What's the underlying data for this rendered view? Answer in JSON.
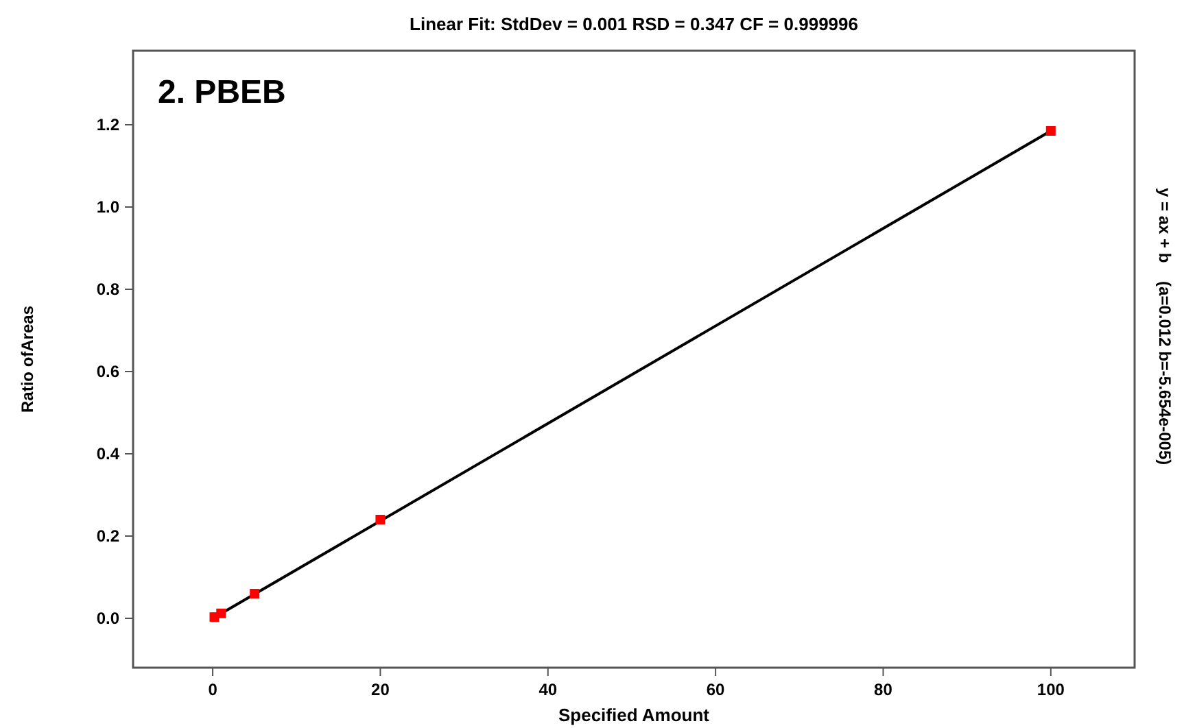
{
  "chart_data": {
    "type": "scatter",
    "title": "Linear Fit: StdDev = 0.001 RSD = 0.347 CF = 0.999996",
    "xlabel": "Specified Amount",
    "ylabel": "Ratio ofAreas",
    "annotations": [
      "2. PBEB",
      "y = ax + b    (a=0.012 b=-5.654e-005)"
    ],
    "series": [
      {
        "type": "line",
        "color": "#000000",
        "x": [
          0.2,
          100
        ],
        "values": [
          0.002,
          1.185
        ],
        "marker": "none"
      },
      {
        "color": "#ff0000",
        "x": [
          0.2,
          1,
          5,
          20,
          100
        ],
        "values": [
          0.003,
          0.012,
          0.06,
          0.24,
          1.185
        ],
        "marker": "square"
      }
    ],
    "xlim": [
      -9.5,
      110
    ],
    "xticks": [
      0,
      20,
      40,
      60,
      80,
      100
    ],
    "ylim": [
      -0.12,
      1.38
    ],
    "yticks": [
      {
        "value": 0,
        "label": "0.0"
      },
      {
        "value": 0.2,
        "label": "0.2"
      },
      {
        "value": 0.4,
        "label": "0.4"
      },
      {
        "value": 0.6,
        "label": "0.6"
      },
      {
        "value": 0.8,
        "label": "0.8"
      },
      {
        "value": 1,
        "label": "1.0"
      },
      {
        "value": 1.2,
        "label": "1.2"
      }
    ],
    "grid": false
  }
}
